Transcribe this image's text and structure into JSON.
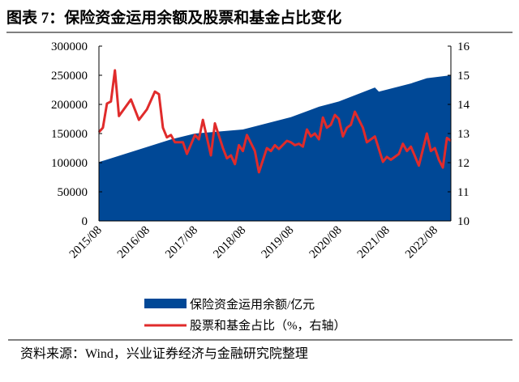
{
  "chart_data": {
    "type": "area+line",
    "title": "图表 7：保险资金运用余额及股票和基金占比变化",
    "source": "资料来源：Wind，兴业证券经济与金融研究院整理",
    "xlim": [
      "2015/08",
      "2022/12"
    ],
    "x_tick_labels": [
      "2015/08",
      "2016/08",
      "2017/08",
      "2018/08",
      "2019/08",
      "2020/08",
      "2021/08",
      "2022/08"
    ],
    "left_axis": {
      "ylim": [
        0,
        300000
      ],
      "ticks": [
        "0",
        "50000",
        "100000",
        "150000",
        "200000",
        "250000",
        "300000"
      ]
    },
    "right_axis": {
      "ylim": [
        10,
        16
      ],
      "ticks": [
        "10",
        "11",
        "12",
        "13",
        "14",
        "15",
        "16"
      ]
    },
    "grid": false,
    "legend_placement": "bottom",
    "series": [
      {
        "name": "保险资金运用余额/亿元",
        "type": "area",
        "axis": "left",
        "color": "#004896",
        "points": [
          [
            "2015/08",
            101000
          ],
          [
            "2016/08",
            127000
          ],
          [
            "2017/02",
            140000
          ],
          [
            "2017/08",
            150000
          ],
          [
            "2018/08",
            157000
          ],
          [
            "2019/08",
            178000
          ],
          [
            "2020/03",
            196000
          ],
          [
            "2020/08",
            205000
          ],
          [
            "2021/05",
            229000
          ],
          [
            "2021/06",
            222000
          ],
          [
            "2022/02",
            236000
          ],
          [
            "2022/06",
            245000
          ],
          [
            "2022/12",
            250000
          ]
        ]
      },
      {
        "name": "股票和基金占比（%，右轴）",
        "type": "line",
        "axis": "right",
        "color": "#e02b2b",
        "points": [
          [
            "2015/08",
            13.05
          ],
          [
            "2015/09",
            13.2
          ],
          [
            "2015/10",
            14.03
          ],
          [
            "2015/11",
            14.1
          ],
          [
            "2015/12",
            15.17
          ],
          [
            "2016/01",
            13.6
          ],
          [
            "2016/04",
            14.17
          ],
          [
            "2016/06",
            13.47
          ],
          [
            "2016/08",
            13.83
          ],
          [
            "2016/10",
            14.44
          ],
          [
            "2016/11",
            14.35
          ],
          [
            "2016/12",
            13.2
          ],
          [
            "2017/01",
            12.87
          ],
          [
            "2017/02",
            12.95
          ],
          [
            "2017/03",
            12.7
          ],
          [
            "2017/05",
            12.7
          ],
          [
            "2017/06",
            12.3
          ],
          [
            "2017/08",
            12.95
          ],
          [
            "2017/09",
            12.8
          ],
          [
            "2017/10",
            13.47
          ],
          [
            "2017/12",
            12.25
          ],
          [
            "2018/01",
            13.35
          ],
          [
            "2018/03",
            12.5
          ],
          [
            "2018/04",
            12.15
          ],
          [
            "2018/05",
            12.25
          ],
          [
            "2018/06",
            11.95
          ],
          [
            "2018/07",
            12.6
          ],
          [
            "2018/08",
            12.4
          ],
          [
            "2018/09",
            12.95
          ],
          [
            "2018/11",
            12.4
          ],
          [
            "2018/12",
            11.67
          ],
          [
            "2019/02",
            12.5
          ],
          [
            "2019/03",
            12.4
          ],
          [
            "2019/04",
            12.6
          ],
          [
            "2019/05",
            12.47
          ],
          [
            "2019/07",
            12.75
          ],
          [
            "2019/08",
            12.7
          ],
          [
            "2019/09",
            12.6
          ],
          [
            "2019/10",
            12.65
          ],
          [
            "2019/11",
            12.55
          ],
          [
            "2019/12",
            13.14
          ],
          [
            "2020/01",
            12.9
          ],
          [
            "2020/02",
            13.0
          ],
          [
            "2020/03",
            12.8
          ],
          [
            "2020/04",
            13.55
          ],
          [
            "2020/05",
            13.2
          ],
          [
            "2020/06",
            13.3
          ],
          [
            "2020/07",
            13.64
          ],
          [
            "2020/08",
            13.5
          ],
          [
            "2020/09",
            12.9
          ],
          [
            "2020/10",
            13.2
          ],
          [
            "2020/11",
            13.3
          ],
          [
            "2020/12",
            13.75
          ],
          [
            "2021/02",
            13.2
          ],
          [
            "2021/03",
            12.7
          ],
          [
            "2021/05",
            12.9
          ],
          [
            "2021/07",
            12.03
          ],
          [
            "2021/08",
            12.2
          ],
          [
            "2021/09",
            12.1
          ],
          [
            "2021/11",
            12.3
          ],
          [
            "2021/12",
            12.65
          ],
          [
            "2022/01",
            12.4
          ],
          [
            "2022/02",
            12.55
          ],
          [
            "2022/04",
            11.9
          ],
          [
            "2022/06",
            13.0
          ],
          [
            "2022/07",
            12.4
          ],
          [
            "2022/08",
            12.5
          ],
          [
            "2022/09",
            12.1
          ],
          [
            "2022/10",
            11.83
          ],
          [
            "2022/11",
            12.85
          ],
          [
            "2022/12",
            12.75
          ]
        ]
      }
    ]
  }
}
